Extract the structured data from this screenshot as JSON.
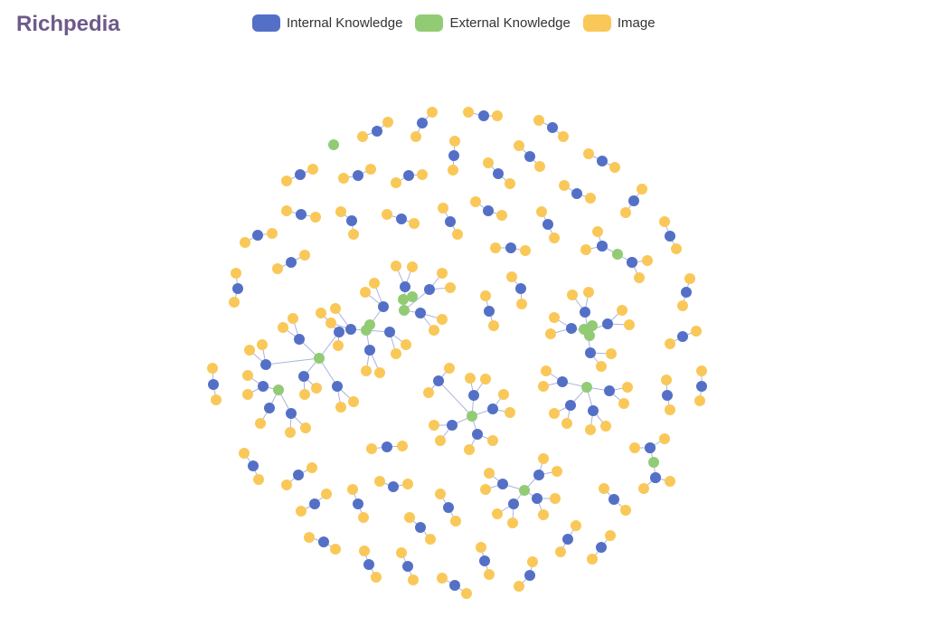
{
  "title": "Richpedia",
  "legend": [
    {
      "label": "Internal Knowledge",
      "color": "#5470c6"
    },
    {
      "label": "External Knowledge",
      "color": "#91cc75"
    },
    {
      "label": "Image",
      "color": "#fac858"
    }
  ],
  "edge_color": "#a9b4de",
  "graph": {
    "clusters": [
      {
        "hub": "external",
        "spokes": 6
      },
      {
        "hub": "external",
        "spokes": 5
      },
      {
        "hub": "external",
        "spokes": 6
      },
      {
        "hub": "external",
        "spokes": 5
      },
      {
        "hub": "external",
        "spokes": 5
      },
      {
        "hub": "external",
        "spokes": 5
      },
      {
        "hub": "external",
        "spokes": 5
      },
      {
        "hub": "external",
        "spokes": 5
      }
    ],
    "pair_groups": 48,
    "isolated_external_nodes": 1
  }
}
